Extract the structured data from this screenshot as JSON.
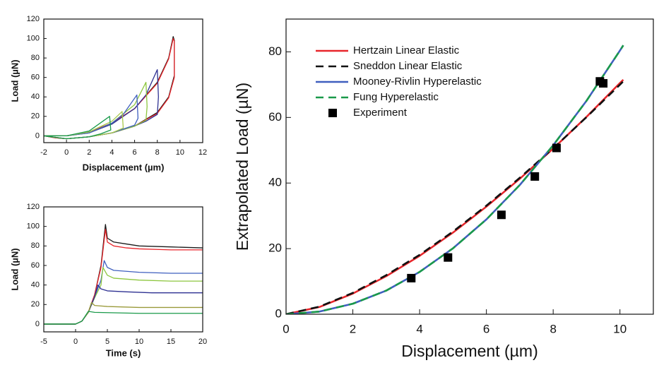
{
  "chart_data": [
    {
      "type": "line",
      "xlabel": "Displacement (µm)",
      "ylabel": "Load (µN)",
      "xlim": [
        -2,
        12
      ],
      "ylim": [
        -7,
        120
      ],
      "xticks": [
        -2,
        0,
        2,
        4,
        6,
        8,
        10,
        12
      ],
      "yticks": [
        0,
        20,
        40,
        60,
        80,
        100,
        120
      ],
      "series": [
        {
          "color": "#1a1a1a",
          "x": [
            -2,
            0,
            2,
            4,
            6,
            8,
            9,
            9.4,
            9.5,
            9.5,
            9,
            8,
            6,
            4,
            2,
            0,
            -1,
            -2
          ],
          "values": [
            0,
            0,
            4,
            13,
            28,
            55,
            80,
            102,
            98,
            62,
            40,
            24,
            10,
            3,
            -1,
            -3,
            -2,
            0
          ]
        },
        {
          "color": "#e8262b",
          "x": [
            -2,
            0,
            2,
            4,
            6,
            8,
            9,
            9.4,
            9.5,
            9.5,
            9,
            8,
            6,
            4,
            2,
            0,
            -1,
            -2
          ],
          "values": [
            0,
            0,
            4,
            13,
            28,
            54,
            79,
            100,
            97,
            60,
            39,
            23,
            10,
            3,
            -1,
            -3,
            -2,
            0
          ]
        },
        {
          "color": "#2e3192",
          "x": [
            -2,
            0,
            2,
            4,
            6,
            7,
            8,
            8.1,
            8,
            7,
            6,
            4,
            2,
            0,
            -2
          ],
          "values": [
            0,
            0,
            3,
            12,
            28,
            42,
            68,
            40,
            22,
            15,
            10,
            3,
            -1,
            -3,
            0
          ]
        },
        {
          "color": "#8dc63f",
          "x": [
            -2,
            0,
            2,
            4,
            6,
            7,
            7.1,
            7,
            6,
            4,
            2,
            0,
            -2
          ],
          "values": [
            0,
            0,
            3,
            13,
            32,
            55,
            30,
            16,
            10,
            3,
            -1,
            -3,
            0
          ]
        },
        {
          "color": "#3f5fbf",
          "x": [
            -2,
            0,
            2,
            4,
            5,
            6.2,
            6.3,
            6,
            4,
            2,
            0,
            -2
          ],
          "values": [
            0,
            0,
            3,
            13,
            22,
            42,
            18,
            11,
            3,
            -1,
            -3,
            0
          ]
        },
        {
          "color": "#a8c84a",
          "x": [
            -2,
            0,
            2,
            4,
            4.9,
            5,
            4,
            2,
            0,
            -2
          ],
          "values": [
            0,
            0,
            4,
            15,
            25,
            8,
            3,
            -1,
            -3,
            0
          ]
        },
        {
          "color": "#1a9a4a",
          "x": [
            -2,
            0,
            2,
            3.8,
            3.9,
            3,
            2,
            0,
            -2
          ],
          "values": [
            0,
            0,
            5,
            20,
            6,
            2,
            -1,
            -3,
            0
          ]
        }
      ]
    },
    {
      "type": "line",
      "xlabel": "Time (s)",
      "ylabel": "Load (µN)",
      "xlim": [
        -5,
        20
      ],
      "ylim": [
        -8,
        120
      ],
      "xticks": [
        -5,
        0,
        5,
        10,
        15,
        20
      ],
      "yticks": [
        0,
        20,
        40,
        60,
        80,
        100,
        120
      ],
      "series": [
        {
          "color": "#1a1a1a",
          "x": [
            -5,
            -2,
            0,
            1,
            2,
            3,
            4,
            4.7,
            5,
            6,
            8,
            10,
            15,
            20
          ],
          "values": [
            0,
            0,
            0,
            3,
            12,
            30,
            60,
            102,
            88,
            84,
            82,
            80,
            79,
            78
          ]
        },
        {
          "color": "#e8262b",
          "x": [
            -5,
            -2,
            0,
            1,
            2,
            3,
            4,
            4.7,
            5,
            6,
            8,
            10,
            15,
            20
          ],
          "values": [
            0,
            0,
            0,
            3,
            12,
            30,
            58,
            97,
            84,
            80,
            78,
            77,
            76,
            76
          ]
        },
        {
          "color": "#3f5fbf",
          "x": [
            -5,
            -2,
            0,
            1,
            2,
            3,
            4,
            4.5,
            5,
            6,
            8,
            10,
            15,
            20
          ],
          "values": [
            0,
            0,
            0,
            3,
            12,
            28,
            45,
            65,
            58,
            55,
            54,
            53,
            52,
            52
          ]
        },
        {
          "color": "#8dc63f",
          "x": [
            -5,
            -2,
            0,
            1,
            2,
            3,
            4,
            4.3,
            5,
            6,
            8,
            10,
            15,
            20
          ],
          "values": [
            0,
            0,
            0,
            3,
            12,
            27,
            40,
            58,
            50,
            47,
            46,
            45,
            44,
            44
          ]
        },
        {
          "color": "#2e3192",
          "x": [
            -5,
            -2,
            0,
            1,
            2,
            3,
            3.5,
            4,
            5,
            8,
            12,
            20
          ],
          "values": [
            0,
            0,
            0,
            3,
            12,
            28,
            40,
            36,
            34,
            33,
            32,
            32
          ]
        },
        {
          "color": "#9a9a3a",
          "x": [
            -5,
            -2,
            0,
            1,
            2,
            2.5,
            3,
            5,
            10,
            20
          ],
          "values": [
            0,
            0,
            0,
            3,
            12,
            22,
            19,
            18,
            17,
            17
          ]
        },
        {
          "color": "#1a9a4a",
          "x": [
            -5,
            -2,
            0,
            1,
            2,
            3,
            10,
            20
          ],
          "values": [
            0,
            0,
            0,
            3,
            13,
            12,
            11,
            11
          ]
        }
      ]
    },
    {
      "type": "line",
      "xlabel": "Displacement (µm)",
      "ylabel": "Extrapolated Load (µN)",
      "xlim": [
        0,
        11
      ],
      "ylim": [
        0,
        90
      ],
      "xticks": [
        0,
        2,
        4,
        6,
        8,
        10
      ],
      "yticks": [
        0,
        20,
        40,
        60,
        80
      ],
      "legend": "top-left",
      "series": [
        {
          "name": "Hertzain Linear Elastic",
          "color": "#e8262b",
          "x": [
            0,
            1,
            2,
            3,
            4,
            5,
            6,
            7,
            8,
            9,
            10,
            10.1
          ],
          "values": [
            0,
            2.2,
            6.3,
            11.6,
            17.8,
            24.9,
            32.8,
            41.3,
            50.5,
            60.2,
            70.5,
            71.5
          ]
        },
        {
          "name": "Sneddon Linear Elastic",
          "color": "#111111",
          "dash": true,
          "x": [
            0,
            1,
            2,
            3,
            4,
            5,
            6,
            7,
            8,
            9,
            10,
            10.1
          ],
          "values": [
            0,
            2.3,
            6.5,
            11.9,
            18.1,
            25.2,
            33.1,
            41.6,
            50.6,
            60.1,
            70,
            71
          ]
        },
        {
          "name": "Mooney-Rivlin Hyperelastic",
          "color": "#3f5fbf",
          "x": [
            0,
            1,
            2,
            3,
            4,
            5,
            6,
            7,
            8,
            9,
            10,
            10.1
          ],
          "values": [
            0,
            0.8,
            3.2,
            7.2,
            12.9,
            20.1,
            28.9,
            39.4,
            51.5,
            65.1,
            80.4,
            82
          ]
        },
        {
          "name": "Fung Hyperelastic",
          "color": "#1a9a4a",
          "dash": true,
          "x": [
            0,
            1,
            2,
            3,
            4,
            5,
            6,
            7,
            8,
            9,
            10,
            10.1
          ],
          "values": [
            0,
            0.8,
            3.2,
            7.2,
            12.9,
            20.1,
            28.9,
            39.4,
            51.5,
            65.1,
            80.4,
            82
          ]
        },
        {
          "name": "Experiment",
          "color": "#000000",
          "marker": "square",
          "x": [
            3.75,
            4.85,
            6.45,
            7.45,
            8.1,
            9.4,
            9.5
          ],
          "values": [
            11,
            17.3,
            30.3,
            42,
            50.7,
            71,
            70.4
          ]
        }
      ]
    }
  ]
}
